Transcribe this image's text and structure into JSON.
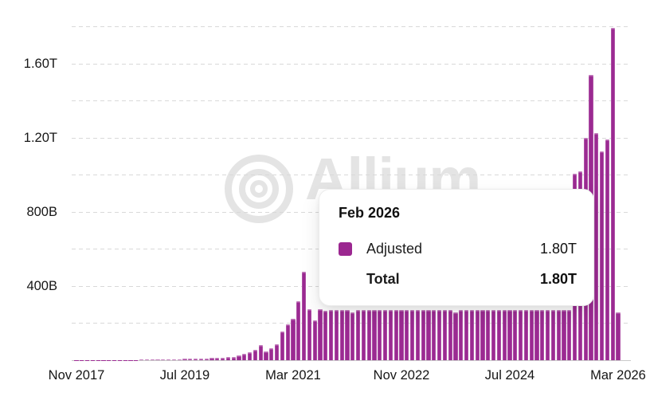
{
  "watermark": {
    "brand": "Allium"
  },
  "tooltip": {
    "title": "Feb 2026",
    "rows": [
      {
        "swatch": "#9b2790",
        "label": "Adjusted",
        "value": "1.80T",
        "bold": false
      },
      {
        "swatch": null,
        "label": "Total",
        "value": "1.80T",
        "bold": true
      }
    ]
  },
  "colors": {
    "bar": "#9b2a92",
    "swatch": "#9b2790",
    "gridline": "#d9d9d9",
    "axis_line": "#c9c9c9",
    "axis_text": "#161616",
    "watermark": "#e4e4e4",
    "tooltip_bg": "#ffffff"
  },
  "chart_data": {
    "type": "bar",
    "title": "",
    "series_name": "Adjusted",
    "unit": "USD",
    "x_interval": "month",
    "x_start": "Nov 2017",
    "x_end": "Mar 2026",
    "x_ticks": [
      {
        "month_index": 0,
        "label": "Nov 2017"
      },
      {
        "month_index": 20,
        "label": "Jul 2019"
      },
      {
        "month_index": 40,
        "label": "Mar 2021"
      },
      {
        "month_index": 60,
        "label": "Nov 2022"
      },
      {
        "month_index": 80,
        "label": "Jul 2024"
      },
      {
        "month_index": 100,
        "label": "Mar 2026"
      }
    ],
    "y_ticks": [
      {
        "value_billions": 400,
        "label": "400B"
      },
      {
        "value_billions": 800,
        "label": "800B"
      },
      {
        "value_billions": 1200,
        "label": "1.20T"
      },
      {
        "value_billions": 1600,
        "label": "1.60T"
      }
    ],
    "gridline_values_billions": [
      200,
      400,
      600,
      800,
      1000,
      1200,
      1400,
      1600,
      1800
    ],
    "ylim_billions": [
      0,
      1870
    ],
    "grid": true,
    "legend_position": "none",
    "values_billions": [
      0.5,
      0.8,
      1,
      1,
      1.2,
      1.2,
      1.5,
      1.5,
      1.5,
      1.5,
      2,
      2,
      2.5,
      3,
      3,
      3.5,
      4,
      5,
      6,
      6,
      7,
      8,
      8,
      9,
      10,
      11,
      13,
      15,
      18,
      16,
      27,
      34,
      44,
      56,
      82,
      46,
      65,
      84,
      153,
      194,
      225,
      318,
      479,
      275,
      215,
      275,
      268,
      271,
      271,
      272,
      270,
      257,
      271,
      272,
      271,
      270,
      272,
      271,
      270,
      272,
      271,
      270,
      272,
      271,
      270,
      272,
      271,
      270,
      272,
      271,
      257,
      272,
      271,
      270,
      272,
      271,
      270,
      272,
      271,
      270,
      272,
      271,
      270,
      272,
      271,
      270,
      272,
      271,
      270,
      272,
      271,
      270,
      1005,
      1020,
      1200,
      1540,
      1225,
      1125,
      1190,
      1795,
      260
    ],
    "highlighted_month": "Feb 2026",
    "highlighted_value_billions": 1795
  }
}
